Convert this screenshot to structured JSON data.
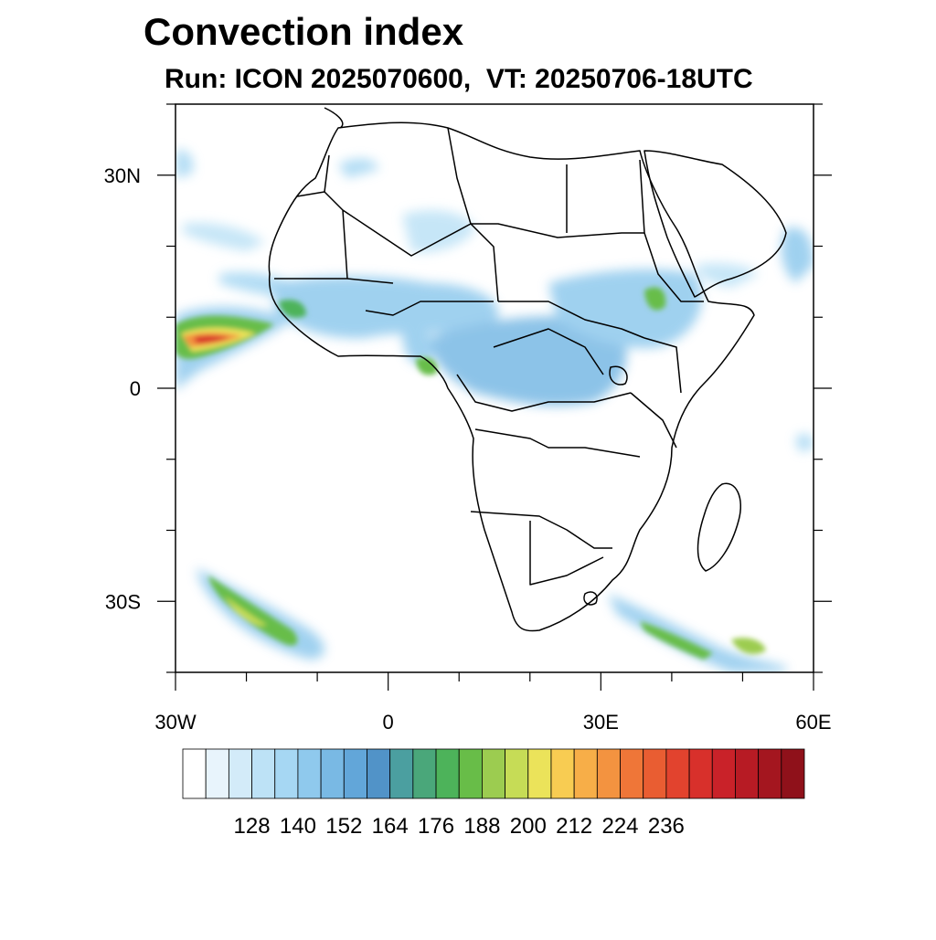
{
  "title": "Convection index",
  "subtitle": "Run: ICON 2025070600,  VT: 20250706-18UTC",
  "map": {
    "lon_range": [
      -30,
      60
    ],
    "lat_range": [
      -40,
      40
    ],
    "lat_ticks": [
      {
        "value": 30,
        "label": "30N"
      },
      {
        "value": 0,
        "label": "0"
      },
      {
        "value": -30,
        "label": "30S"
      }
    ],
    "lon_ticks": [
      {
        "value": -30,
        "label": "30W"
      },
      {
        "value": 0,
        "label": "0"
      },
      {
        "value": 30,
        "label": "30E"
      },
      {
        "value": 60,
        "label": "60E"
      }
    ]
  },
  "colorbar": {
    "labels": [
      "128",
      "140",
      "152",
      "164",
      "176",
      "188",
      "200",
      "212",
      "224",
      "236"
    ],
    "colors": [
      "#ffffff",
      "#e8f4fc",
      "#d3ebf9",
      "#bde2f6",
      "#a6d7f3",
      "#8fc9ed",
      "#79b9e4",
      "#62a6d9",
      "#5193c8",
      "#4b9fa0",
      "#4aa77a",
      "#4db35a",
      "#68bd48",
      "#9ccc50",
      "#c6dc56",
      "#ebe35a",
      "#f8cc52",
      "#f7ae48",
      "#f39340",
      "#ef7638",
      "#e95d32",
      "#e2432e",
      "#d8302b",
      "#c92229",
      "#b71b24",
      "#a4161f",
      "#8f111a"
    ]
  }
}
